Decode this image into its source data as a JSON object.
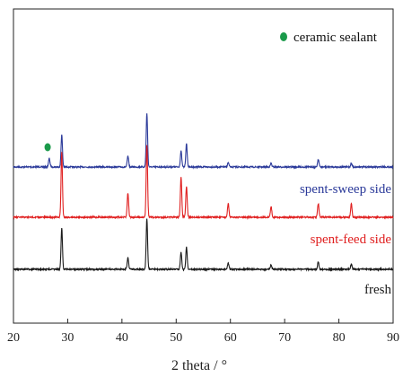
{
  "chart_data": {
    "type": "line",
    "title": "",
    "xlabel": "2 theta / °",
    "ylabel": "",
    "xlim": [
      20,
      90
    ],
    "xticks": [
      "20",
      "30",
      "40",
      "50",
      "60",
      "70",
      "80",
      "90"
    ],
    "grid": false,
    "legend": {
      "placement": "top-right",
      "marker_color": "#1a9a4a",
      "label": "ceramic sealant"
    },
    "series": [
      {
        "name": "spent-sweep side",
        "color": "#2b3a9a",
        "label_color": "#2b3a9a",
        "baseline": 0.0,
        "peaks": [
          {
            "x": 26.6,
            "h": 0.12
          },
          {
            "x": 28.9,
            "h": 0.45
          },
          {
            "x": 41.1,
            "h": 0.15
          },
          {
            "x": 44.6,
            "h": 0.75
          },
          {
            "x": 50.9,
            "h": 0.22
          },
          {
            "x": 51.9,
            "h": 0.32
          },
          {
            "x": 59.6,
            "h": 0.06
          },
          {
            "x": 67.5,
            "h": 0.05
          },
          {
            "x": 76.2,
            "h": 0.11
          },
          {
            "x": 82.3,
            "h": 0.05
          }
        ]
      },
      {
        "name": "spent-feed side",
        "color": "#e02020",
        "label_color": "#e02020",
        "baseline": 0.0,
        "peaks": [
          {
            "x": 28.9,
            "h": 0.85
          },
          {
            "x": 41.1,
            "h": 0.32
          },
          {
            "x": 44.6,
            "h": 0.95
          },
          {
            "x": 50.9,
            "h": 0.52
          },
          {
            "x": 51.9,
            "h": 0.4
          },
          {
            "x": 59.6,
            "h": 0.18
          },
          {
            "x": 67.5,
            "h": 0.14
          },
          {
            "x": 76.2,
            "h": 0.18
          },
          {
            "x": 82.3,
            "h": 0.18
          }
        ]
      },
      {
        "name": "fresh",
        "color": "#1a1a1a",
        "label_color": "#1a1a1a",
        "baseline": 0.0,
        "peaks": [
          {
            "x": 28.9,
            "h": 0.8
          },
          {
            "x": 41.1,
            "h": 0.22
          },
          {
            "x": 44.6,
            "h": 0.98
          },
          {
            "x": 50.9,
            "h": 0.33
          },
          {
            "x": 51.9,
            "h": 0.42
          },
          {
            "x": 59.6,
            "h": 0.12
          },
          {
            "x": 67.5,
            "h": 0.09
          },
          {
            "x": 76.2,
            "h": 0.14
          },
          {
            "x": 82.3,
            "h": 0.1
          }
        ]
      }
    ],
    "annotations": [
      {
        "text": "spent-sweep side",
        "series": "spent-sweep side"
      },
      {
        "text": "spent-feed side",
        "series": "spent-feed side"
      },
      {
        "text": "fresh",
        "series": "fresh"
      }
    ],
    "peak_marker": {
      "x": 26.3,
      "series": "spent-sweep side",
      "color": "#1a9a4a"
    }
  }
}
